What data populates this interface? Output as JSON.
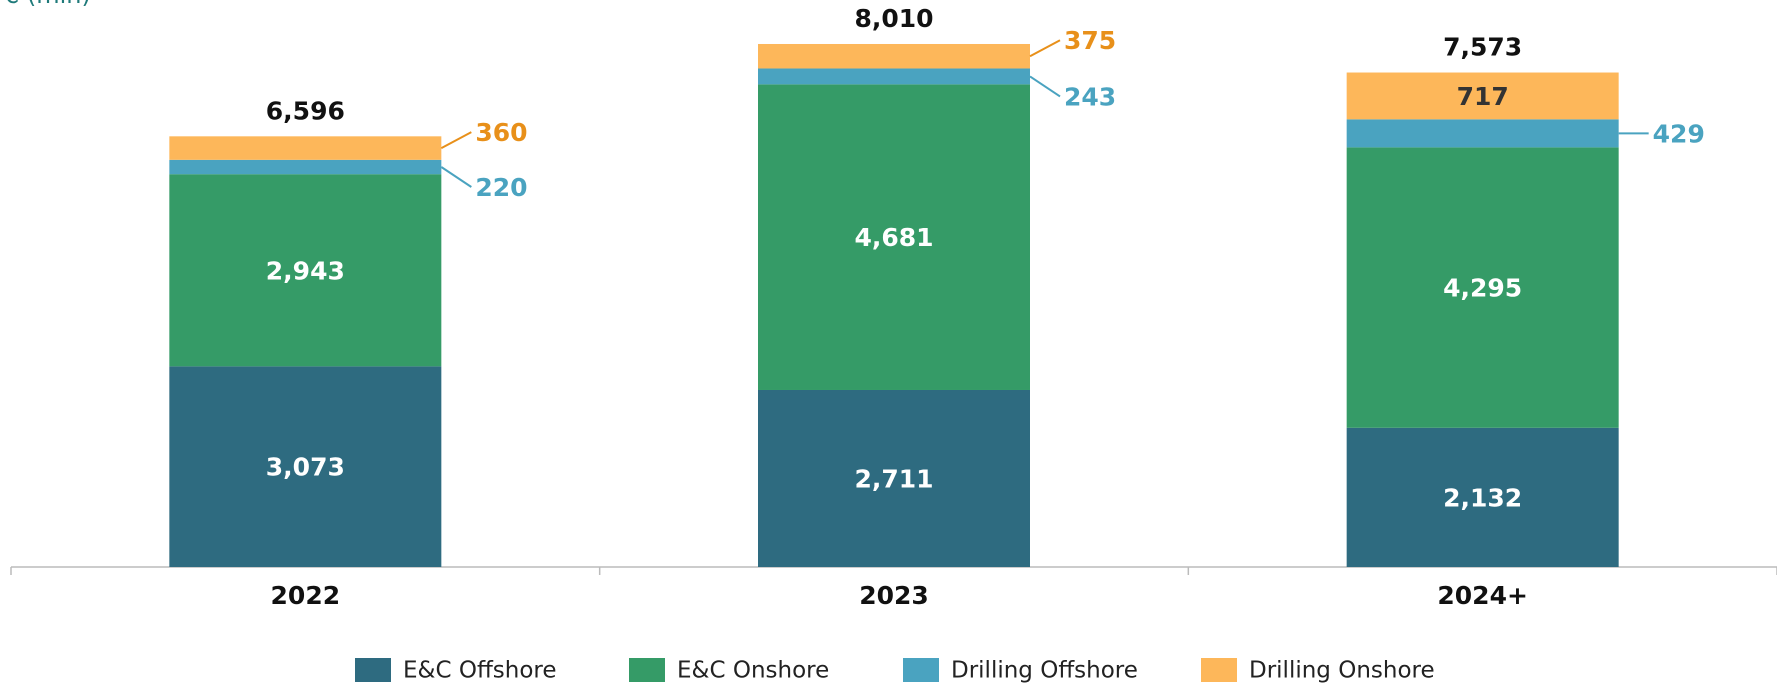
{
  "chart_data": {
    "type": "stacked_bar",
    "subtitle": "€ (mln)",
    "categories": [
      "2022",
      "2023",
      "2024+"
    ],
    "series": [
      {
        "name": "E&C Offshore",
        "color": "#2e6b80",
        "values": [
          3073,
          2711,
          2132
        ],
        "value_labels": [
          "3,073",
          "2,711",
          "2,132"
        ]
      },
      {
        "name": "E&C Onshore",
        "color": "#359b67",
        "values": [
          2943,
          4681,
          4295
        ],
        "value_labels": [
          "2,943",
          "4,681",
          "4,295"
        ]
      },
      {
        "name": "Drilling Offshore",
        "color": "#4aa3c0",
        "values": [
          220,
          243,
          429
        ],
        "value_labels": [
          "220",
          "243",
          "429"
        ]
      },
      {
        "name": "Drilling Onshore",
        "color": "#fdb75a",
        "values": [
          360,
          375,
          717
        ],
        "value_labels": [
          "360",
          "375",
          "717"
        ]
      }
    ],
    "totals": [
      6596,
      8010,
      7573
    ],
    "total_labels": [
      "6,596",
      "8,010",
      "7,573"
    ],
    "ylim": [
      0,
      8500
    ]
  }
}
